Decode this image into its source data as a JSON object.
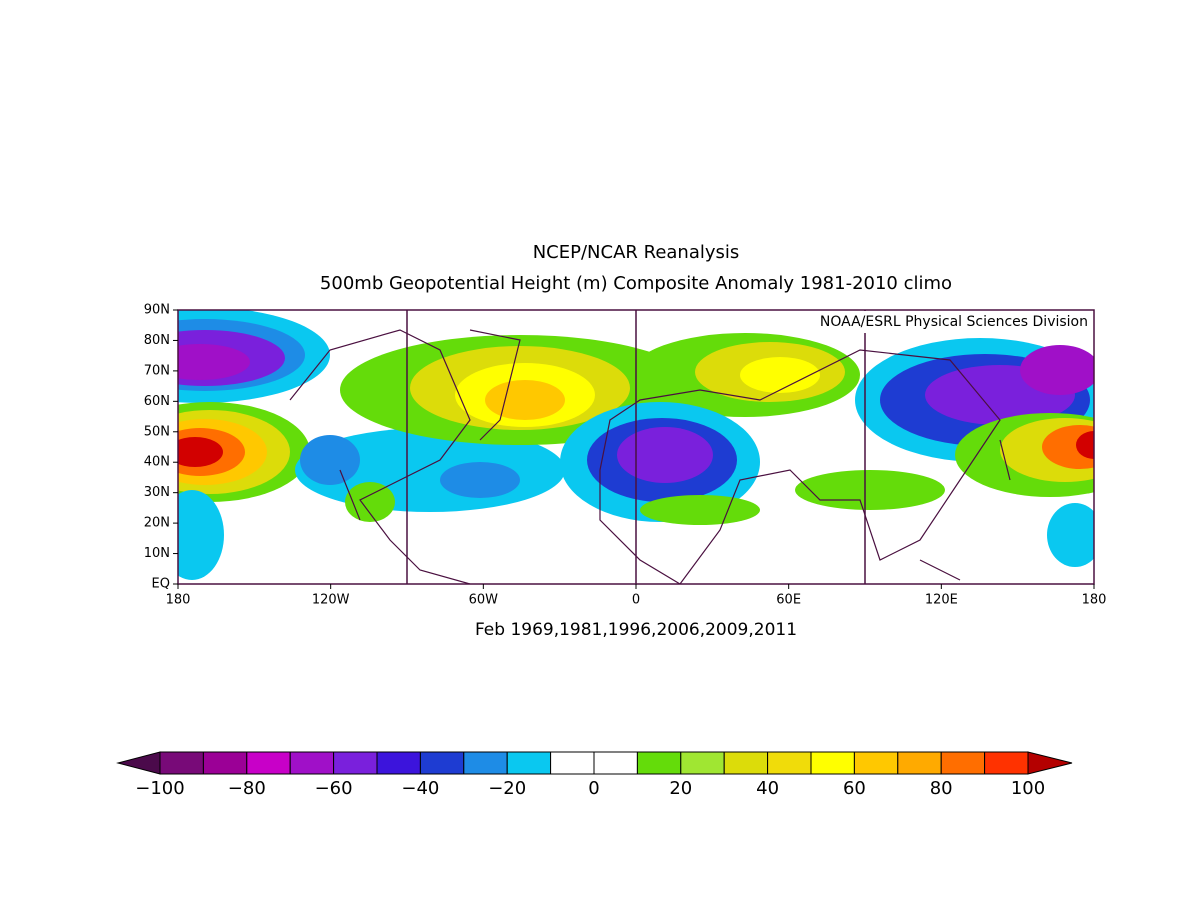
{
  "header": {
    "title": "NCEP/NCAR Reanalysis",
    "subtitle": "500mb Geopotential Height (m) Composite Anomaly 1981-2010 climo"
  },
  "map": {
    "credit": "NOAA/ESRL Physical Sciences Division",
    "lat_labels": [
      "EQ",
      "10N",
      "20N",
      "30N",
      "40N",
      "50N",
      "60N",
      "70N",
      "80N",
      "90N"
    ],
    "lon_labels": [
      "180",
      "120W",
      "60W",
      "0",
      "60E",
      "120E",
      "180"
    ],
    "caption": "Feb 1969,1981,1996,2006,2009,2011"
  },
  "colorbar": {
    "low_color": "#4b0a4b",
    "high_color": "#b40000",
    "colors": [
      "#780a78",
      "#9b0096",
      "#c800c8",
      "#a010c8",
      "#7a20dc",
      "#3c14dc",
      "#1e3cd2",
      "#1e8ce6",
      "#0ac8f0",
      "#ffffff",
      "#ffffff",
      "#64dc0a",
      "#a0e632",
      "#dcdc0a",
      "#f0dc0a",
      "#ffff00",
      "#ffc800",
      "#ffaa00",
      "#ff6e00",
      "#ff3200"
    ],
    "labels": [
      "−100",
      "−80",
      "−60",
      "−40",
      "−20",
      "0",
      "20",
      "40",
      "60",
      "80",
      "100"
    ]
  }
}
